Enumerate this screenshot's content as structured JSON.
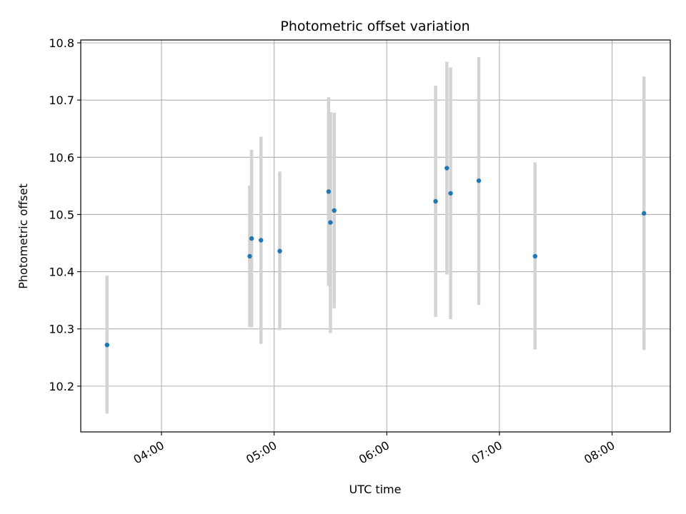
{
  "chart_data": {
    "type": "scatter",
    "title": "Photometric offset variation",
    "xlabel": "UTC time",
    "ylabel": "Photometric offset",
    "x_ticks": [
      "04:00",
      "05:00",
      "06:00",
      "07:00",
      "08:00"
    ],
    "y_ticks": [
      "10.2",
      "10.3",
      "10.4",
      "10.5",
      "10.6",
      "10.7",
      "10.8"
    ],
    "xlim": [
      "03:17",
      "08:31"
    ],
    "ylim": [
      10.12,
      10.805
    ],
    "grid": true,
    "colors": {
      "point": "#1f77b4",
      "errorbar": "#d3d3d3",
      "grid": "#b0b0b0"
    },
    "points": [
      {
        "x": "03:31",
        "y": 10.272,
        "err_low": 10.152,
        "err_high": 10.393
      },
      {
        "x": "04:47",
        "y": 10.427,
        "err_low": 10.303,
        "err_high": 10.551
      },
      {
        "x": "04:48",
        "y": 10.458,
        "err_low": 10.303,
        "err_high": 10.613
      },
      {
        "x": "04:53",
        "y": 10.455,
        "err_low": 10.274,
        "err_high": 10.636
      },
      {
        "x": "05:03",
        "y": 10.436,
        "err_low": 10.298,
        "err_high": 10.575
      },
      {
        "x": "05:29",
        "y": 10.54,
        "err_low": 10.375,
        "err_high": 10.705
      },
      {
        "x": "05:30",
        "y": 10.486,
        "err_low": 10.293,
        "err_high": 10.679
      },
      {
        "x": "05:32",
        "y": 10.507,
        "err_low": 10.336,
        "err_high": 10.678
      },
      {
        "x": "06:26",
        "y": 10.523,
        "err_low": 10.321,
        "err_high": 10.725
      },
      {
        "x": "06:32",
        "y": 10.581,
        "err_low": 10.395,
        "err_high": 10.767
      },
      {
        "x": "06:34",
        "y": 10.537,
        "err_low": 10.317,
        "err_high": 10.757
      },
      {
        "x": "06:49",
        "y": 10.559,
        "err_low": 10.342,
        "err_high": 10.775
      },
      {
        "x": "07:19",
        "y": 10.427,
        "err_low": 10.264,
        "err_high": 10.591
      },
      {
        "x": "08:17",
        "y": 10.502,
        "err_low": 10.263,
        "err_high": 10.741
      }
    ]
  }
}
